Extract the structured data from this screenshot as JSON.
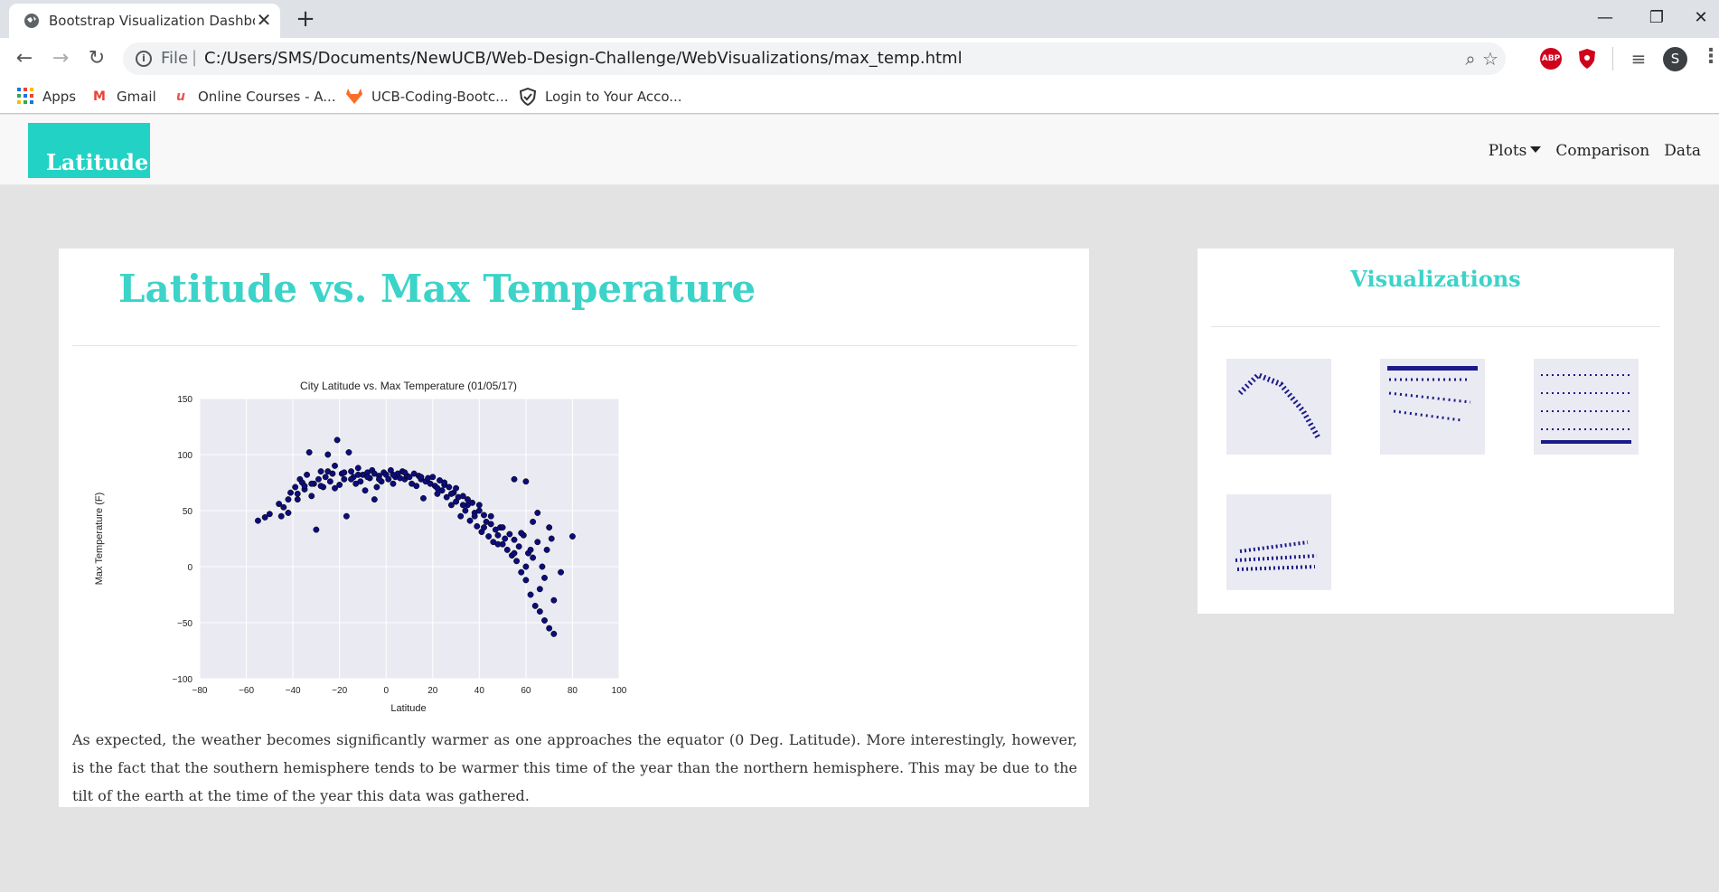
{
  "browser": {
    "tab_title": "Bootstrap Visualization Dashboard",
    "url_prefix": "File",
    "url": "C:/Users/SMS/Documents/NewUCB/Web-Design-Challenge/WebVisualizations/max_temp.html",
    "profile_initial": "S",
    "extensions": [
      "ABP"
    ],
    "bookmarks": [
      {
        "label": "Apps",
        "icon": "apps-grid-icon"
      },
      {
        "label": "Gmail",
        "icon": "gmail-icon"
      },
      {
        "label": "Online Courses - A...",
        "icon": "udemy-icon"
      },
      {
        "label": "UCB-Coding-Bootc...",
        "icon": "gitlab-icon"
      },
      {
        "label": "Login to Your Acco...",
        "icon": "shield-check-icon"
      }
    ]
  },
  "navbar": {
    "brand": "Latitude",
    "links": [
      "Plots",
      "Comparison",
      "Data"
    ]
  },
  "main": {
    "title": "Latitude vs. Max Temperature",
    "description": "As expected, the weather becomes significantly warmer as one approaches the equator (0 Deg. Latitude). More interestingly, however, is the fact that the southern hemisphere tends to be warmer this time of the year than the northern hemisphere. This may be due to the tilt of the earth at the time of the year this data was gathered."
  },
  "sidebar": {
    "title": "Visualizations",
    "thumbnails": [
      "max-temperature-plot",
      "humidity-plot",
      "cloudiness-plot",
      "wind-speed-plot"
    ]
  },
  "chart_data": {
    "type": "scatter",
    "title": "City Latitude vs. Max Temperature (01/05/17)",
    "xlabel": "Latitude",
    "ylabel": "Max Temperature (F)",
    "xlim": [
      -80,
      100
    ],
    "ylim": [
      -100,
      150
    ],
    "xticks": [
      -80,
      -60,
      -40,
      -20,
      0,
      20,
      40,
      60,
      80,
      100
    ],
    "yticks": [
      -100,
      -50,
      0,
      50,
      100,
      150
    ],
    "grid": true,
    "marker_color": "#0c0c7a",
    "points": [
      [
        -55,
        41
      ],
      [
        -52,
        44
      ],
      [
        -50,
        47
      ],
      [
        -46,
        56
      ],
      [
        -45,
        45
      ],
      [
        -44,
        53
      ],
      [
        -42,
        48
      ],
      [
        -41,
        66
      ],
      [
        -39,
        71
      ],
      [
        -38,
        60
      ],
      [
        -37,
        78
      ],
      [
        -36,
        75
      ],
      [
        -35,
        69
      ],
      [
        -34,
        82
      ],
      [
        -33,
        102
      ],
      [
        -32,
        63
      ],
      [
        -31,
        74
      ],
      [
        -30,
        33
      ],
      [
        -29,
        78
      ],
      [
        -28,
        85
      ],
      [
        -27,
        71
      ],
      [
        -26,
        80
      ],
      [
        -25,
        100
      ],
      [
        -24,
        76
      ],
      [
        -23,
        83
      ],
      [
        -22,
        90
      ],
      [
        -21,
        113
      ],
      [
        -20,
        73
      ],
      [
        -19,
        83
      ],
      [
        -18,
        78
      ],
      [
        -17,
        45
      ],
      [
        -16,
        102
      ],
      [
        -15,
        85
      ],
      [
        -14,
        80
      ],
      [
        -13,
        74
      ],
      [
        -12,
        88
      ],
      [
        -11,
        76
      ],
      [
        -10,
        82
      ],
      [
        -9,
        68
      ],
      [
        -8,
        84
      ],
      [
        -7,
        79
      ],
      [
        -6,
        86
      ],
      [
        -5,
        83
      ],
      [
        -4,
        71
      ],
      [
        -3,
        81
      ],
      [
        -2,
        76
      ],
      [
        -1,
        84
      ],
      [
        0,
        82
      ],
      [
        1,
        78
      ],
      [
        2,
        86
      ],
      [
        3,
        74
      ],
      [
        4,
        80
      ],
      [
        5,
        83
      ],
      [
        6,
        79
      ],
      [
        7,
        85
      ],
      [
        8,
        78
      ],
      [
        9,
        81
      ],
      [
        10,
        80
      ],
      [
        11,
        74
      ],
      [
        12,
        83
      ],
      [
        13,
        72
      ],
      [
        14,
        81
      ],
      [
        15,
        78
      ],
      [
        16,
        61
      ],
      [
        17,
        76
      ],
      [
        18,
        79
      ],
      [
        19,
        74
      ],
      [
        20,
        80
      ],
      [
        21,
        72
      ],
      [
        22,
        65
      ],
      [
        23,
        77
      ],
      [
        24,
        68
      ],
      [
        25,
        73
      ],
      [
        26,
        62
      ],
      [
        27,
        71
      ],
      [
        28,
        55
      ],
      [
        29,
        66
      ],
      [
        30,
        58
      ],
      [
        31,
        62
      ],
      [
        32,
        45
      ],
      [
        33,
        63
      ],
      [
        34,
        50
      ],
      [
        35,
        55
      ],
      [
        36,
        41
      ],
      [
        37,
        57
      ],
      [
        38,
        48
      ],
      [
        39,
        36
      ],
      [
        40,
        50
      ],
      [
        41,
        31
      ],
      [
        42,
        46
      ],
      [
        43,
        40
      ],
      [
        44,
        27
      ],
      [
        45,
        38
      ],
      [
        46,
        22
      ],
      [
        47,
        33
      ],
      [
        48,
        28
      ],
      [
        49,
        35
      ],
      [
        50,
        20
      ],
      [
        51,
        25
      ],
      [
        52,
        15
      ],
      [
        53,
        29
      ],
      [
        54,
        10
      ],
      [
        55,
        24
      ],
      [
        56,
        5
      ],
      [
        57,
        18
      ],
      [
        58,
        -5
      ],
      [
        59,
        28
      ],
      [
        60,
        -12
      ],
      [
        61,
        12
      ],
      [
        62,
        -25
      ],
      [
        63,
        8
      ],
      [
        64,
        -35
      ],
      [
        65,
        22
      ],
      [
        66,
        -40
      ],
      [
        67,
        0
      ],
      [
        68,
        -48
      ],
      [
        69,
        15
      ],
      [
        70,
        -55
      ],
      [
        71,
        25
      ],
      [
        72,
        -60
      ],
      [
        75,
        -5
      ],
      [
        80,
        27
      ],
      [
        55,
        78
      ],
      [
        60,
        76
      ],
      [
        50,
        35
      ],
      [
        58,
        30
      ],
      [
        62,
        15
      ],
      [
        45,
        45
      ],
      [
        40,
        55
      ],
      [
        35,
        60
      ],
      [
        30,
        70
      ],
      [
        25,
        75
      ],
      [
        -5,
        60
      ],
      [
        -15,
        78
      ],
      [
        -25,
        85
      ],
      [
        -35,
        72
      ],
      [
        -42,
        60
      ],
      [
        65,
        48
      ],
      [
        63,
        40
      ],
      [
        70,
        35
      ],
      [
        66,
        -20
      ],
      [
        68,
        -10
      ],
      [
        72,
        -30
      ],
      [
        60,
        0
      ],
      [
        55,
        12
      ],
      [
        48,
        20
      ],
      [
        42,
        35
      ],
      [
        38,
        45
      ],
      [
        33,
        55
      ],
      [
        28,
        65
      ],
      [
        22,
        70
      ],
      [
        15,
        80
      ],
      [
        8,
        84
      ],
      [
        3,
        82
      ],
      [
        -3,
        78
      ],
      [
        -8,
        80
      ],
      [
        -12,
        82
      ],
      [
        -18,
        84
      ],
      [
        -22,
        70
      ],
      [
        -28,
        72
      ],
      [
        -32,
        74
      ],
      [
        -38,
        65
      ]
    ]
  }
}
